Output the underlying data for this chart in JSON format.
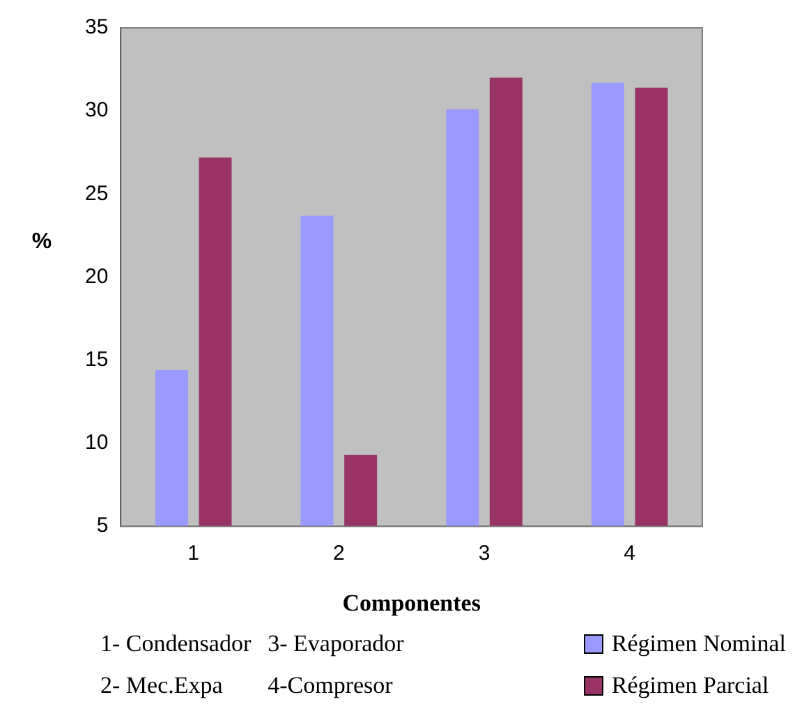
{
  "chart_data": {
    "type": "bar",
    "categories": [
      "1",
      "2",
      "3",
      "4"
    ],
    "series": [
      {
        "name": "Régimen Nominal",
        "color": "#9999ff",
        "values": [
          14.4,
          23.7,
          30.1,
          31.7
        ]
      },
      {
        "name": "Régimen Parcial",
        "color": "#993366",
        "values": [
          27.2,
          9.3,
          32.0,
          31.4
        ]
      }
    ],
    "ylim": [
      5,
      35
    ],
    "yticks": [
      5,
      10,
      15,
      20,
      25,
      30,
      35
    ],
    "xlabel": "Componentes",
    "ylabel": "%",
    "legend": "bottom right",
    "annotations": [
      "1- Condensador",
      "3- Evaporador",
      "2- Mec.Expa",
      "4-Compresor"
    ]
  }
}
